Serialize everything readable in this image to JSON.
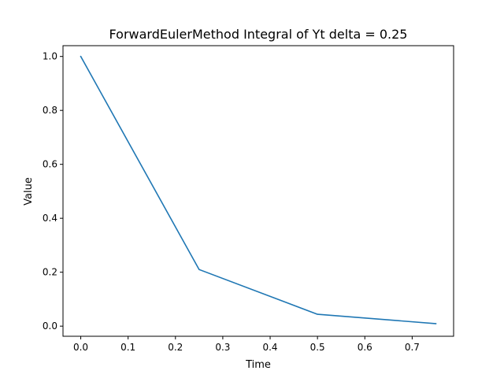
{
  "chart_data": {
    "type": "line",
    "title": "ForwardEulerMethod Integral of Yt delta = 0.25",
    "xlabel": "Time",
    "ylabel": "Value",
    "xlim": [
      -0.0375,
      0.7875
    ],
    "ylim": [
      -0.0375,
      1.04
    ],
    "xticks": [
      0.0,
      0.1,
      0.2,
      0.3,
      0.4,
      0.5,
      0.6,
      0.7
    ],
    "xtick_labels": [
      "0.0",
      "0.1",
      "0.2",
      "0.3",
      "0.4",
      "0.5",
      "0.6",
      "0.7"
    ],
    "yticks": [
      0.0,
      0.2,
      0.4,
      0.6,
      0.8,
      1.0
    ],
    "ytick_labels": [
      "0.0",
      "0.2",
      "0.4",
      "0.6",
      "0.8",
      "1.0"
    ],
    "grid": false,
    "series": [
      {
        "x": [
          0.0,
          0.25,
          0.5,
          0.75
        ],
        "y": [
          1.0,
          0.21,
          0.044,
          0.0093
        ],
        "color": "#1f77b4"
      }
    ]
  }
}
